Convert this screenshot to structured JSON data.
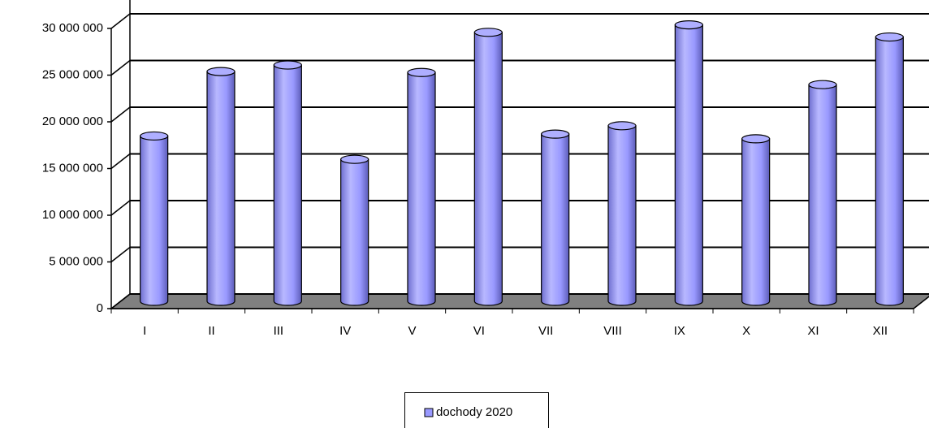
{
  "chart_data": {
    "type": "bar3d",
    "categories": [
      "I",
      "II",
      "III",
      "IV",
      "V",
      "VI",
      "VII",
      "VIII",
      "IX",
      "X",
      "XI",
      "XII"
    ],
    "series": [
      {
        "name": "dochody 2020",
        "color": "#9999ff",
        "values": [
          17700000,
          24600000,
          25300000,
          15200000,
          24500000,
          28800000,
          17900000,
          18800000,
          29600000,
          17400000,
          23200000,
          28300000
        ]
      }
    ],
    "ylim": [
      0,
      30000000
    ],
    "yticks": [
      0,
      {
        "value": 5000000,
        "label": "5 000 000"
      },
      {
        "value": 10000000,
        "label": "10 000 000"
      },
      {
        "value": 15000000,
        "label": "15 000 000"
      },
      {
        "value": 20000000,
        "label": "20 000 000"
      },
      {
        "value": 25000000,
        "label": "25 000 000"
      },
      {
        "value": 30000000,
        "label": "30 000 000"
      }
    ],
    "grid": true,
    "legend": "bottom"
  }
}
